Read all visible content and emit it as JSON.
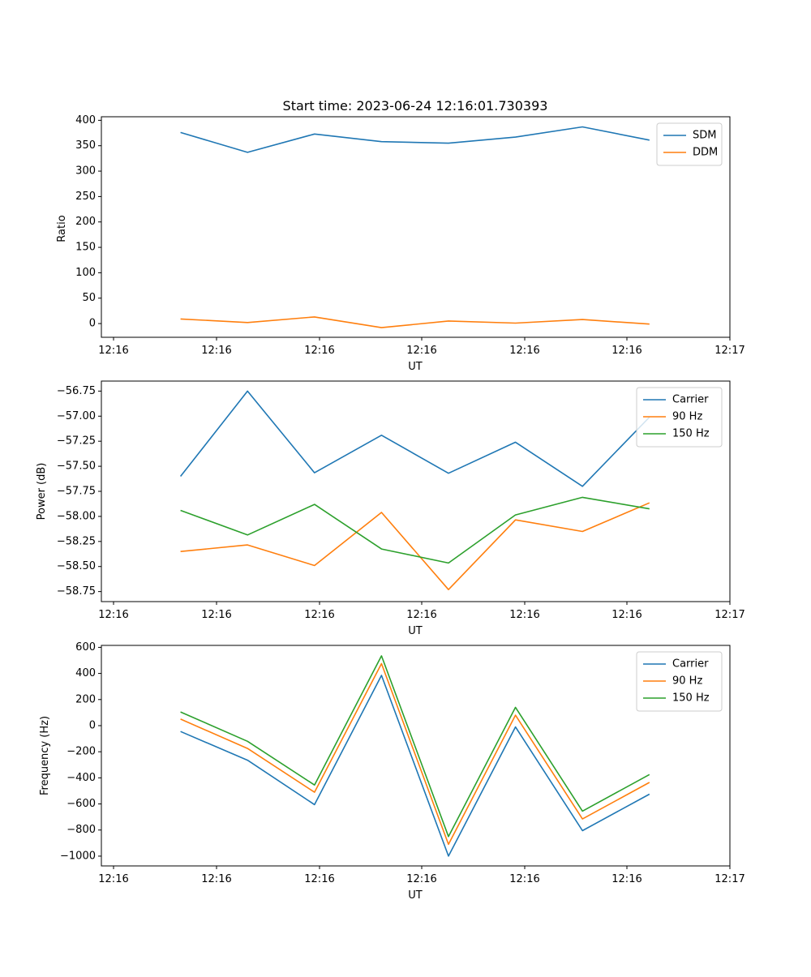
{
  "chart_data": [
    {
      "type": "line",
      "title": "Start time: 2023-06-24 12:16:01.730393",
      "xlabel": "UT",
      "ylabel": "Ratio",
      "x_tick_labels": [
        "12:16",
        "12:16",
        "12:16",
        "12:16",
        "12:16",
        "12:16",
        "12:16"
      ],
      "x_last_tick_label": "12:17",
      "y_ticks": [
        0,
        50,
        100,
        150,
        200,
        250,
        300,
        350,
        400
      ],
      "y_tick_labels": [
        "0",
        "50",
        "100",
        "150",
        "200",
        "250",
        "300",
        "350",
        "400"
      ],
      "ylim": [
        -27,
        407
      ],
      "legend_position": "top-right",
      "x_index": [
        1,
        2,
        3,
        4,
        5,
        6,
        7,
        8
      ],
      "series": [
        {
          "name": "SDM",
          "color": "#1f77b4",
          "values": [
            376,
            337,
            373,
            358,
            355,
            367,
            387,
            361
          ]
        },
        {
          "name": "DDM",
          "color": "#ff7f0e",
          "values": [
            9,
            2,
            13,
            -8,
            5,
            1,
            8,
            -1
          ]
        }
      ]
    },
    {
      "type": "line",
      "xlabel": "UT",
      "ylabel": "Power (dB)",
      "x_tick_labels": [
        "12:16",
        "12:16",
        "12:16",
        "12:16",
        "12:16",
        "12:16",
        "12:16"
      ],
      "x_last_tick_label": "12:17",
      "y_ticks": [
        -58.75,
        -58.5,
        -58.25,
        -58.0,
        -57.75,
        -57.5,
        -57.25,
        -57.0,
        -56.75
      ],
      "y_tick_labels": [
        "−58.75",
        "−58.50",
        "−58.25",
        "−58.00",
        "−57.75",
        "−57.50",
        "−57.25",
        "−57.00",
        "−56.75"
      ],
      "ylim": [
        -58.85,
        -56.65
      ],
      "legend_position": "top-right",
      "x_index": [
        1,
        2,
        3,
        4,
        5,
        6,
        7,
        8
      ],
      "series": [
        {
          "name": "Carrier",
          "color": "#1f77b4",
          "values": [
            -57.6,
            -56.75,
            -57.565,
            -57.19,
            -57.57,
            -57.26,
            -57.7,
            -57.01
          ]
        },
        {
          "name": "90 Hz",
          "color": "#ff7f0e",
          "values": [
            -58.35,
            -58.285,
            -58.49,
            -57.96,
            -58.73,
            -58.035,
            -58.15,
            -57.865
          ]
        },
        {
          "name": "150 Hz",
          "color": "#2ca02c",
          "values": [
            -57.94,
            -58.185,
            -57.88,
            -58.325,
            -58.465,
            -57.985,
            -57.81,
            -57.925
          ]
        }
      ]
    },
    {
      "type": "line",
      "xlabel": "UT",
      "ylabel": "Frequency (Hz)",
      "x_tick_labels": [
        "12:16",
        "12:16",
        "12:16",
        "12:16",
        "12:16",
        "12:16",
        "12:16"
      ],
      "x_last_tick_label": "12:17",
      "y_ticks": [
        -1000,
        -800,
        -600,
        -400,
        -200,
        0,
        200,
        400,
        600
      ],
      "y_tick_labels": [
        "−1000",
        "−800",
        "−600",
        "−400",
        "−200",
        "0",
        "200",
        "400",
        "600"
      ],
      "ylim": [
        -1075,
        615
      ],
      "legend_position": "top-right",
      "x_index": [
        1,
        2,
        3,
        4,
        5,
        6,
        7,
        8
      ],
      "series": [
        {
          "name": "Carrier",
          "color": "#1f77b4",
          "values": [
            -45,
            -265,
            -605,
            385,
            -1000,
            -10,
            -805,
            -525
          ]
        },
        {
          "name": "90 Hz",
          "color": "#ff7f0e",
          "values": [
            50,
            -175,
            -510,
            475,
            -910,
            80,
            -715,
            -435
          ]
        },
        {
          "name": "150 Hz",
          "color": "#2ca02c",
          "values": [
            105,
            -120,
            -455,
            535,
            -850,
            140,
            -655,
            -375
          ]
        }
      ]
    }
  ]
}
